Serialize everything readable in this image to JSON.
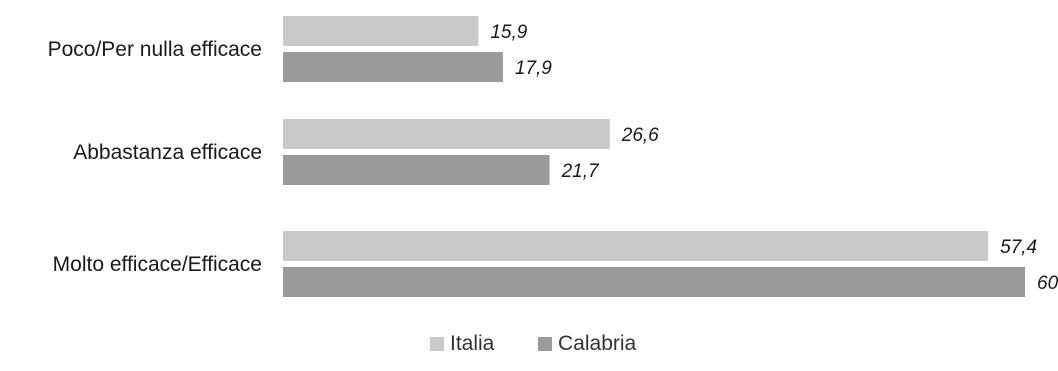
{
  "chart_data": {
    "type": "bar",
    "orientation": "horizontal",
    "categories": [
      "Poco/Per nulla efficace",
      "Abbastanza efficace",
      "Molto efficace/Efficace"
    ],
    "series": [
      {
        "name": "Italia",
        "values": [
          15.9,
          26.6,
          57.4
        ],
        "value_labels": [
          "15,9",
          "26,6",
          "57,4"
        ],
        "color": "#c9c9c9"
      },
      {
        "name": "Calabria",
        "values": [
          17.9,
          21.7,
          60.4
        ],
        "value_labels": [
          "17,9",
          "21,7",
          "60,4"
        ],
        "color": "#9b9b9b"
      }
    ],
    "xlim": [
      0,
      60.4
    ],
    "grid": false,
    "legend_position": "bottom-center"
  }
}
